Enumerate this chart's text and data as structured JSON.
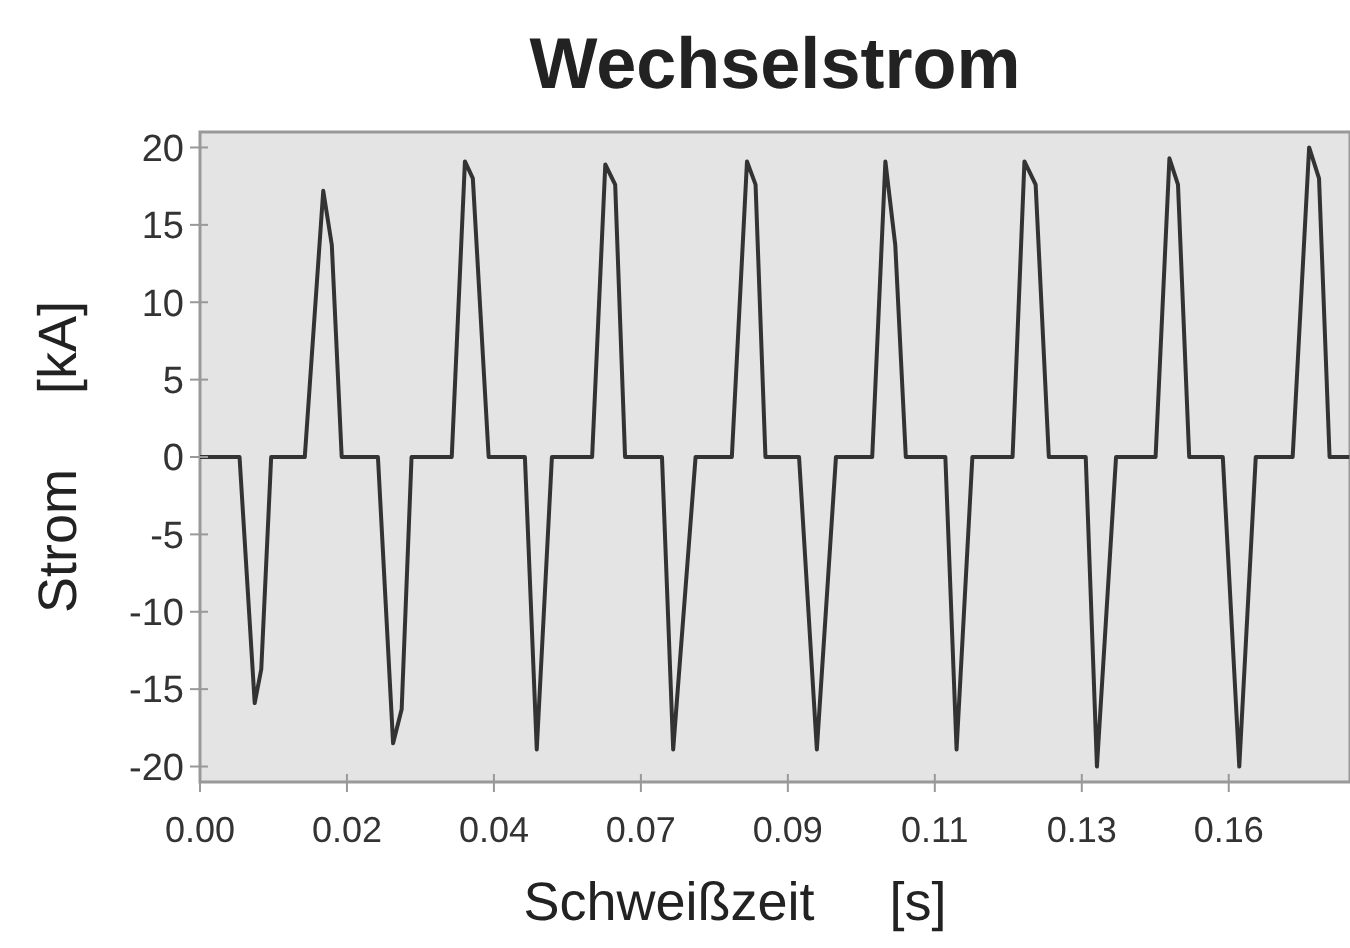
{
  "chart_data": {
    "type": "line",
    "title": "Wechselstrom",
    "xlabel": "Schweißzeit     [s]",
    "ylabel": "Strom     [kA]",
    "x": [
      0,
      0.006,
      0.0083,
      0.0093,
      0.0108,
      0.0159,
      0.0187,
      0.02,
      0.0215,
      0.027,
      0.0293,
      0.0306,
      0.0321,
      0.0382,
      0.0402,
      0.0414,
      0.0438,
      0.0493,
      0.0511,
      0.0534,
      0.0595,
      0.0615,
      0.063,
      0.0645,
      0.0701,
      0.0718,
      0.0752,
      0.0807,
      0.083,
      0.0843,
      0.0858,
      0.0909,
      0.0936,
      0.0965,
      0.102,
      0.104,
      0.1055,
      0.1071,
      0.1131,
      0.1148,
      0.1172,
      0.1233,
      0.1251,
      0.1268,
      0.1288,
      0.1344,
      0.1361,
      0.139,
      0.145,
      0.1471,
      0.1484,
      0.1501,
      0.1552,
      0.1577,
      0.1602,
      0.1658,
      0.1683,
      0.1698,
      0.1714,
      0.1744
    ],
    "series": [
      {
        "color": "#333333",
        "values": [
          0,
          0,
          -15.9,
          -13.7,
          0,
          0,
          17.2,
          13.7,
          0,
          0,
          -18.5,
          -16.3,
          0,
          0,
          19.1,
          18,
          0,
          0,
          -18.9,
          0,
          0,
          18.9,
          17.6,
          0,
          0,
          -18.9,
          0,
          0,
          19.1,
          17.6,
          0,
          0,
          -18.9,
          0,
          0,
          19.1,
          13.7,
          0,
          0,
          -18.9,
          0,
          0,
          19.1,
          17.6,
          0,
          0,
          -20,
          0,
          0,
          19.3,
          17.6,
          0,
          0,
          -20,
          0,
          0,
          20,
          18,
          0,
          0
        ]
      }
    ],
    "xlim": [
      0,
      0.1745
    ],
    "ylim": [
      -21,
      21
    ],
    "xticks": [
      {
        "value": 0,
        "label": "0.00"
      },
      {
        "value": 0.0223,
        "label": "0.02"
      },
      {
        "value": 0.0446,
        "label": "0.04"
      },
      {
        "value": 0.0669,
        "label": "0.07"
      },
      {
        "value": 0.0892,
        "label": "0.09"
      },
      {
        "value": 0.1115,
        "label": "0.11"
      },
      {
        "value": 0.1338,
        "label": "0.13"
      },
      {
        "value": 0.1561,
        "label": "0.16"
      }
    ],
    "yticks": [
      -20,
      -15,
      -10,
      -5,
      0,
      5,
      10,
      15,
      20
    ],
    "grid": false,
    "marker": "none",
    "line_style": "solid"
  }
}
